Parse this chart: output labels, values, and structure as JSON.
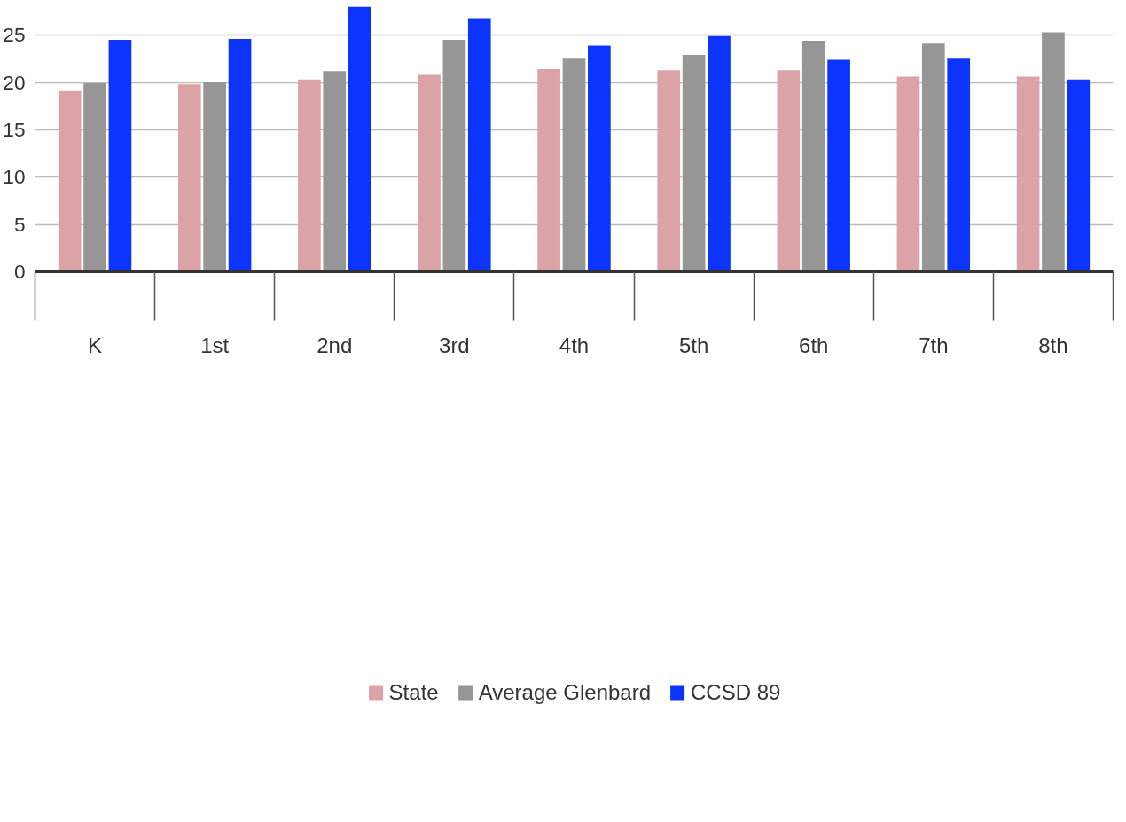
{
  "chart_data": {
    "type": "bar",
    "categories": [
      "K",
      "1st",
      "2nd",
      "3rd",
      "4th",
      "5th",
      "6th",
      "7th",
      "8th"
    ],
    "series": [
      {
        "name": "State",
        "color": "#dba3a5",
        "values": [
          19.1,
          19.8,
          20.3,
          20.8,
          21.4,
          21.3,
          21.3,
          20.6,
          20.6
        ]
      },
      {
        "name": "Average Glenbard",
        "color": "#969696",
        "values": [
          19.9,
          20.0,
          21.2,
          24.5,
          22.6,
          22.9,
          24.4,
          24.1,
          25.3
        ]
      },
      {
        "name": "CCSD 89",
        "color": "#0c34fc",
        "values": [
          24.5,
          24.6,
          28.0,
          26.8,
          23.9,
          24.9,
          22.4,
          22.6,
          20.3
        ]
      }
    ],
    "ylim": [
      0,
      28.2
    ],
    "yticks": [
      0,
      5,
      10,
      15,
      20,
      25
    ],
    "grid": "y",
    "legend": "bottom"
  }
}
